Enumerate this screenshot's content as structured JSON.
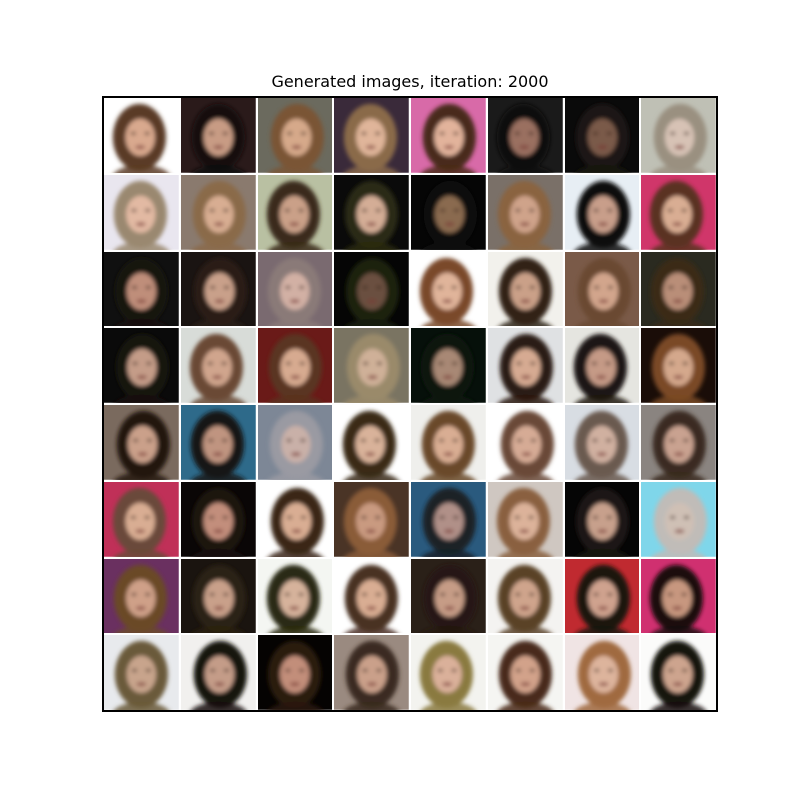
{
  "title": "Generated images, iteration: 2000",
  "grid": {
    "rows": 8,
    "cols": 8,
    "tiles": [
      {
        "bg": "#ffffff",
        "hair": "#5a3b25",
        "skin": "#d9a98e"
      },
      {
        "bg": "#2a1a1a",
        "hair": "#120b0b",
        "skin": "#c89b84"
      },
      {
        "bg": "#6b6a5e",
        "hair": "#7a5535",
        "skin": "#d6a98a"
      },
      {
        "bg": "#3a2a3a",
        "hair": "#8a6a4a",
        "skin": "#e0b59a"
      },
      {
        "bg": "#d86aa8",
        "hair": "#4a2a1a",
        "skin": "#e2b39b"
      },
      {
        "bg": "#1a1a1a",
        "hair": "#0f0b08",
        "skin": "#9a7060"
      },
      {
        "bg": "#0a0a0a",
        "hair": "#1a1512",
        "skin": "#7a5a4a"
      },
      {
        "bg": "#bfc0b5",
        "hair": "#9a9080",
        "skin": "#d7c2b5"
      },
      {
        "bg": "#e9e6ef",
        "hair": "#9a8870",
        "skin": "#e2b9a3"
      },
      {
        "bg": "#8a7a6e",
        "hair": "#8a6a4a",
        "skin": "#d8ad92"
      },
      {
        "bg": "#b9c0a2",
        "hair": "#3a2a1a",
        "skin": "#caa088"
      },
      {
        "bg": "#0a0a0a",
        "hair": "#2a2a12",
        "skin": "#d4ad96"
      },
      {
        "bg": "#050505",
        "hair": "#0d0d0d",
        "skin": "#8a6a50"
      },
      {
        "bg": "#7a7068",
        "hair": "#8a6440",
        "skin": "#cfa38a"
      },
      {
        "bg": "#e7eef4",
        "hair": "#101010",
        "skin": "#c89e8a"
      },
      {
        "bg": "#d0366a",
        "hair": "#5a3222",
        "skin": "#d9ad93"
      },
      {
        "bg": "#101010",
        "hair": "#181210",
        "skin": "#bf8e7a"
      },
      {
        "bg": "#1a1412",
        "hair": "#2a1c14",
        "skin": "#c9a08a"
      },
      {
        "bg": "#7a6a70",
        "hair": "#8a7a78",
        "skin": "#d2b0a4"
      },
      {
        "bg": "#050505",
        "hair": "#1a2010",
        "skin": "#6a5040"
      },
      {
        "bg": "#ffffff",
        "hair": "#7a4a2a",
        "skin": "#e0b49a"
      },
      {
        "bg": "#f2f1ec",
        "hair": "#302418",
        "skin": "#caa088"
      },
      {
        "bg": "#7a5a48",
        "hair": "#6a4a32",
        "skin": "#d2a58c"
      },
      {
        "bg": "#2a2a20",
        "hair": "#3a2a18",
        "skin": "#b98e78"
      },
      {
        "bg": "#0a0a0a",
        "hair": "#151210",
        "skin": "#c49c88"
      },
      {
        "bg": "#d8dcd8",
        "hair": "#6a4a35",
        "skin": "#d0a58d"
      },
      {
        "bg": "#6a1a18",
        "hair": "#5a3420",
        "skin": "#d7aa90"
      },
      {
        "bg": "#7a7462",
        "hair": "#9a8a6a",
        "skin": "#cfb098"
      },
      {
        "bg": "#06100a",
        "hair": "#101410",
        "skin": "#a88874"
      },
      {
        "bg": "#dfe1e3",
        "hair": "#2a1a12",
        "skin": "#d6aa92"
      },
      {
        "bg": "#e5e5e0",
        "hair": "#1f1812",
        "skin": "#c59a86"
      },
      {
        "bg": "#1a0d08",
        "hair": "#7a4a25",
        "skin": "#d4a88c"
      },
      {
        "bg": "#7a6a5e",
        "hair": "#231510",
        "skin": "#caa08a"
      },
      {
        "bg": "#2e6a8a",
        "hair": "#141414",
        "skin": "#c09480"
      },
      {
        "bg": "#7d8796",
        "hair": "#9a9aa2",
        "skin": "#c9b0a8"
      },
      {
        "bg": "#ffffff",
        "hair": "#3a2a18",
        "skin": "#d9b29a"
      },
      {
        "bg": "#efefec",
        "hair": "#6a4a2a",
        "skin": "#d9ad93"
      },
      {
        "bg": "#ffffff",
        "hair": "#6a4a38",
        "skin": "#d6ab95"
      },
      {
        "bg": "#d8dde3",
        "hair": "#6a5a50",
        "skin": "#d0b0a0"
      },
      {
        "bg": "#8a8480",
        "hair": "#3a2a20",
        "skin": "#c9a290"
      },
      {
        "bg": "#c03058",
        "hair": "#6a4a3a",
        "skin": "#d9ad93"
      },
      {
        "bg": "#0a0606",
        "hair": "#1a1210",
        "skin": "#c28e7c"
      },
      {
        "bg": "#ffffff",
        "hair": "#3a2618",
        "skin": "#d9ad93"
      },
      {
        "bg": "#4a3426",
        "hair": "#8a5c38",
        "skin": "#c99a80"
      },
      {
        "bg": "#2a5a7e",
        "hair": "#1a2228",
        "skin": "#b09088"
      },
      {
        "bg": "#cfc7c1",
        "hair": "#8a6040",
        "skin": "#dcb29a"
      },
      {
        "bg": "#050505",
        "hair": "#1a1612",
        "skin": "#c7a08c"
      },
      {
        "bg": "#7fd6ea",
        "hair": "#c0bcb8",
        "skin": "#cfc0b5"
      },
      {
        "bg": "#6a3060",
        "hair": "#6a4a28",
        "skin": "#cfa088"
      },
      {
        "bg": "#1a140f",
        "hair": "#2a2212",
        "skin": "#c9a08a"
      },
      {
        "bg": "#f4f6f2",
        "hair": "#2a2a12",
        "skin": "#d6b29b"
      },
      {
        "bg": "#ffffff",
        "hair": "#4a3024",
        "skin": "#d9ad93"
      },
      {
        "bg": "#2a2018",
        "hair": "#251912",
        "skin": "#c69c86"
      },
      {
        "bg": "#f4f3f1",
        "hair": "#5a4228",
        "skin": "#cfa48c"
      },
      {
        "bg": "#c02a30",
        "hair": "#1a1410",
        "skin": "#cfa28e"
      },
      {
        "bg": "#d03070",
        "hair": "#1a1010",
        "skin": "#c7977f"
      },
      {
        "bg": "#e8eaed",
        "hair": "#6a5a3a",
        "skin": "#c8a48c"
      },
      {
        "bg": "#f1f0ee",
        "hair": "#151210",
        "skin": "#c49c88"
      },
      {
        "bg": "#050302",
        "hair": "#2a1a10",
        "skin": "#c28e7a"
      },
      {
        "bg": "#9a8a80",
        "hair": "#3a2a20",
        "skin": "#caa08a"
      },
      {
        "bg": "#f3f3ef",
        "hair": "#8a7a40",
        "skin": "#dab09a"
      },
      {
        "bg": "#f5f5f2",
        "hair": "#4a2a1a",
        "skin": "#d2a28a"
      },
      {
        "bg": "#f0e4e4",
        "hair": "#a06a40",
        "skin": "#ddb49c"
      },
      {
        "bg": "#fbfbfa",
        "hair": "#161210",
        "skin": "#cda48e"
      }
    ]
  }
}
